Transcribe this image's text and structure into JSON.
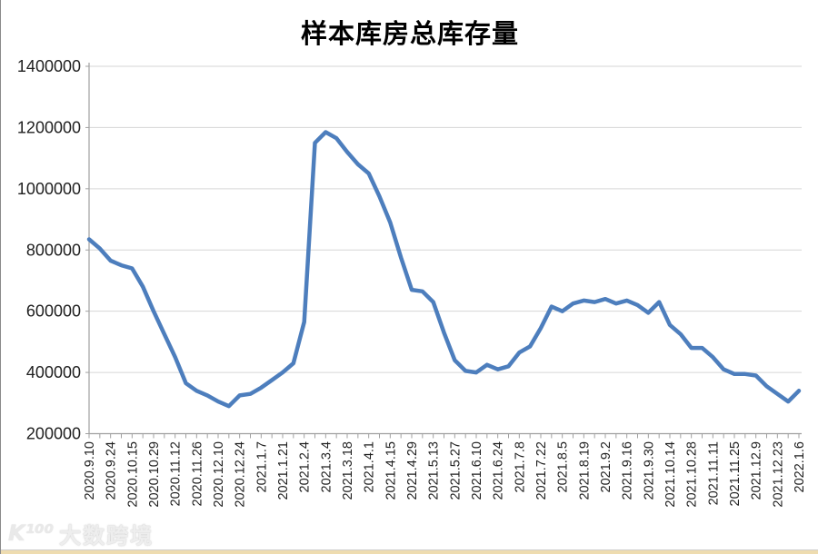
{
  "title": "样本库房总库存量",
  "watermark": {
    "logo": "K¹⁰⁰",
    "text": "大数跨境"
  },
  "colors": {
    "line": "#4D7EBD",
    "gridline": "#d6d6d6",
    "axis": "#a0a0a0",
    "tick": "#a0a0a0",
    "label": "#1f1f1f",
    "title": "#000000",
    "background": "#ffffff",
    "bottom_strip": "#eedcb0"
  },
  "chart_data": {
    "type": "line",
    "title": "样本库房总库存量",
    "xlabel": "",
    "ylabel": "",
    "ylim": [
      200000,
      1400000
    ],
    "ytick_interval": 200000,
    "yticks": [
      1400000,
      1200000,
      1000000,
      800000,
      600000,
      400000,
      200000
    ],
    "grid": true,
    "legend": "none",
    "x_label_interval": 2,
    "x_labels": [
      "2020.9.10",
      "2020.9.24",
      "2020.10.15",
      "2020.10.29",
      "2020.11.12",
      "2020.11.26",
      "2020.12.10",
      "2020.12.24",
      "2021.1.7",
      "2021.1.21",
      "2021.2.4",
      "2021.3.4",
      "2021.3.18",
      "2021.4.1",
      "2021.4.15",
      "2021.4.29",
      "2021.5.13",
      "2021.5.27",
      "2021.6.10",
      "2021.6.24",
      "2021.7.8",
      "2021.7.22",
      "2021.8.5",
      "2021.8.19",
      "2021.9.2",
      "2021.9.16",
      "2021.9.30",
      "2021.10.14",
      "2021.10.28",
      "2021.11.11",
      "2021.11.25",
      "2021.12.9",
      "2021.12.23",
      "2022.1.6"
    ],
    "series": [
      {
        "name": "样本库房总库存量",
        "color": "#4D7EBD",
        "values": [
          835000,
          805000,
          765000,
          750000,
          740000,
          680000,
          600000,
          525000,
          450000,
          365000,
          340000,
          325000,
          305000,
          290000,
          325000,
          330000,
          350000,
          375000,
          400000,
          430000,
          565000,
          1150000,
          1185000,
          1165000,
          1120000,
          1080000,
          1050000,
          975000,
          890000,
          775000,
          670000,
          665000,
          630000,
          530000,
          440000,
          405000,
          400000,
          425000,
          410000,
          420000,
          465000,
          485000,
          545000,
          615000,
          600000,
          625000,
          635000,
          630000,
          640000,
          625000,
          635000,
          620000,
          595000,
          630000,
          555000,
          525000,
          480000,
          480000,
          450000,
          410000,
          395000,
          395000,
          390000,
          355000,
          330000,
          305000,
          340000
        ]
      }
    ]
  }
}
